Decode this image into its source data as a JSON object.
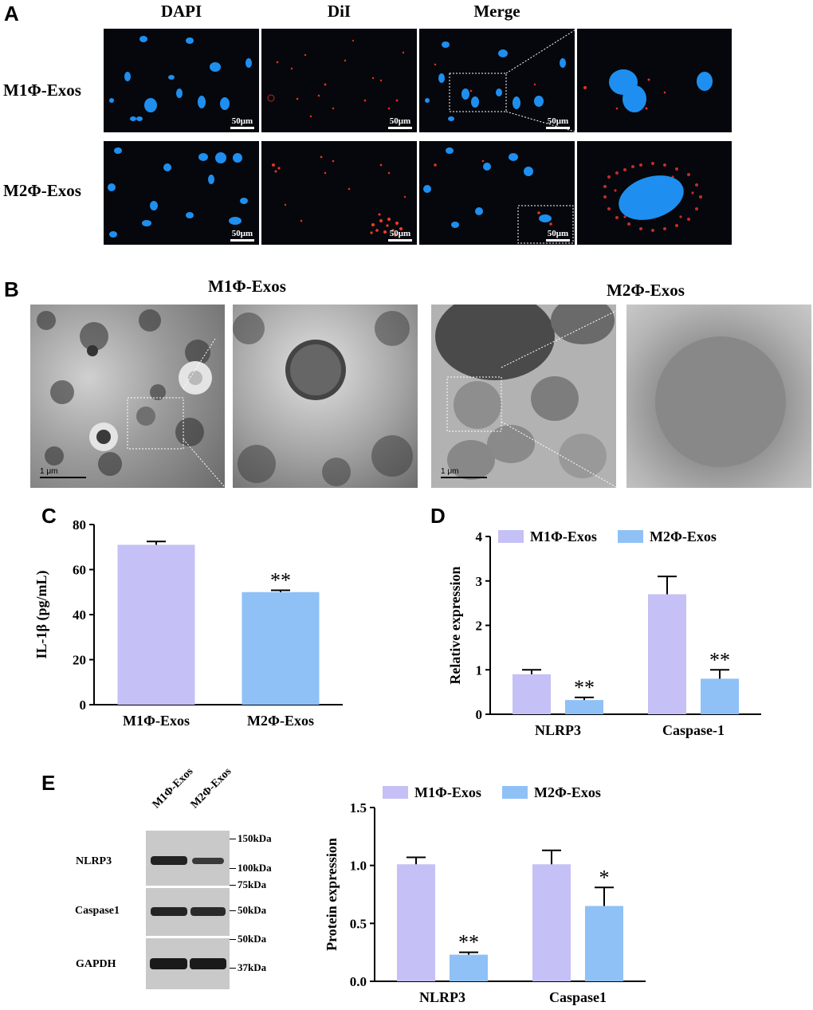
{
  "panels": {
    "A": {
      "letter": "A",
      "columns": [
        "DAPI",
        "DiI",
        "Merge"
      ],
      "rows": [
        "M1Φ-Exos",
        "M2Φ-Exos"
      ],
      "scale_label": "50μm"
    },
    "B": {
      "letter": "B",
      "titles": [
        "M1Φ-Exos",
        "M2Φ-Exos"
      ],
      "scale_label": "1 μm"
    },
    "E": {
      "letter": "E",
      "blot": {
        "lanes": [
          "M1Φ-Exos",
          "M2Φ-Exos"
        ],
        "bands": [
          "NLRP3",
          "Caspase1",
          "GAPDH"
        ],
        "markers": [
          "150kDa",
          "100kDa",
          "75kDa",
          "50kDa",
          "50kDa",
          "37kDa"
        ]
      }
    }
  },
  "colors": {
    "m1": "#c5c0f5",
    "m2": "#8fc1f6"
  },
  "chart_data": [
    {
      "id": "C",
      "letter": "C",
      "type": "bar",
      "categories": [
        "M1Φ-Exos",
        "M2Φ-Exos"
      ],
      "values": [
        71,
        50
      ],
      "errors": [
        1.5,
        0.8
      ],
      "significance": [
        "",
        "**"
      ],
      "ylabel": "IL-1β (pg/mL)",
      "ylim": [
        0,
        80
      ],
      "yticks": [
        "0",
        "20",
        "40",
        "60",
        "80"
      ]
    },
    {
      "id": "D",
      "letter": "D",
      "type": "bar",
      "categories": [
        "NLRP3",
        "Caspase-1"
      ],
      "series": [
        {
          "name": "M1Φ-Exos",
          "values": [
            0.9,
            2.7
          ],
          "errors": [
            0.1,
            0.4
          ],
          "significance": [
            "",
            ""
          ]
        },
        {
          "name": "M2Φ-Exos",
          "values": [
            0.32,
            0.8
          ],
          "errors": [
            0.06,
            0.2
          ],
          "significance": [
            "**",
            "**"
          ]
        }
      ],
      "ylabel": "Relative expression",
      "ylim": [
        0,
        4
      ],
      "yticks": [
        "0",
        "1",
        "2",
        "3",
        "4"
      ],
      "legend": "top"
    },
    {
      "id": "E",
      "type": "bar",
      "categories": [
        "NLRP3",
        "Caspase1"
      ],
      "series": [
        {
          "name": "M1Φ-Exos",
          "values": [
            1.01,
            1.01
          ],
          "errors": [
            0.06,
            0.12
          ],
          "significance": [
            "",
            ""
          ]
        },
        {
          "name": "M2Φ-Exos",
          "values": [
            0.23,
            0.65
          ],
          "errors": [
            0.02,
            0.16
          ],
          "significance": [
            "**",
            "*"
          ]
        }
      ],
      "ylabel": "Protein expression",
      "ylim": [
        0,
        1.5
      ],
      "yticks": [
        "0.0",
        "0.5",
        "1.0",
        "1.5"
      ],
      "legend": "top"
    }
  ]
}
